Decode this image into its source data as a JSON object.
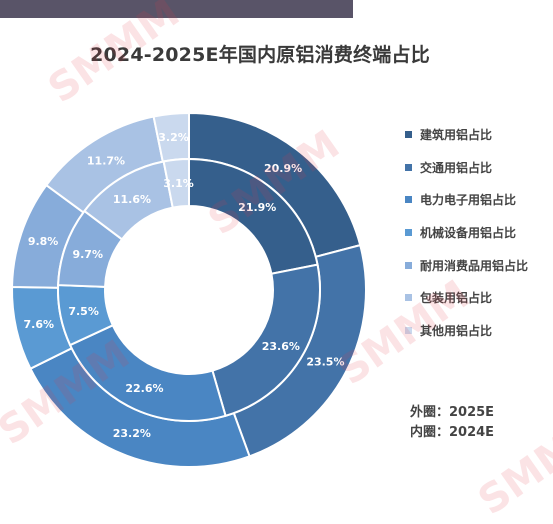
{
  "watermark": "SMMM",
  "chart_data": {
    "type": "pie",
    "title": "2024-2025E年国内原铝消费终端占比",
    "categories": [
      "建筑用铝占比",
      "交通用铝占比",
      "电力电子用铝占比",
      "机械设备用铝占比",
      "耐用消费品用铝占比",
      "包装用铝占比",
      "其他用铝占比"
    ],
    "colors": [
      "#355f8c",
      "#4373a8",
      "#4a86c3",
      "#5a9ad3",
      "#87acda",
      "#a9c2e4",
      "#cad9ee"
    ],
    "series": [
      {
        "name": "2025E",
        "values": [
          20.9,
          23.5,
          23.2,
          7.6,
          9.8,
          11.7,
          3.2
        ]
      },
      {
        "name": "2024E",
        "values": [
          21.9,
          23.6,
          22.6,
          7.5,
          9.7,
          11.6,
          3.1
        ]
      }
    ],
    "labels": {
      "outer": [
        "20.9%",
        "23.5%",
        "23.2%",
        "7.6%",
        "9.8%",
        "11.7%",
        "3.2%"
      ],
      "inner": [
        "21.9%",
        "23.6%",
        "22.6%",
        "7.5%",
        "9.7%",
        "11.6%",
        "3.1%"
      ]
    },
    "legend_position": "right"
  },
  "notes": {
    "outer": "外圈：2025E",
    "inner": "内圈：2024E"
  }
}
